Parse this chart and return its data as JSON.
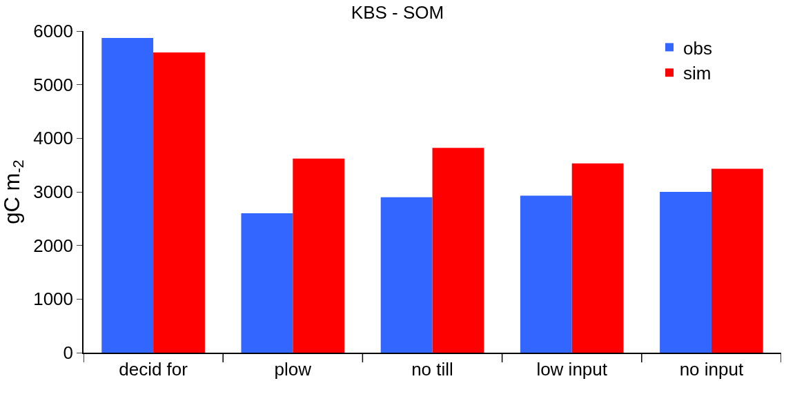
{
  "chart_data": {
    "type": "bar",
    "title": "KBS - SOM",
    "ylabel": "gC m$_{-2}$",
    "categories": [
      "decid for",
      "plow",
      "no till",
      "low input",
      "no input"
    ],
    "series": [
      {
        "name": "obs",
        "color": "#3366ff",
        "values": [
          5870,
          2600,
          2900,
          2930,
          3000
        ]
      },
      {
        "name": "sim",
        "color": "#ff0000",
        "values": [
          5600,
          3620,
          3820,
          3530,
          3430
        ]
      }
    ],
    "ylim": [
      0,
      6000
    ],
    "yticks": [
      0,
      1000,
      2000,
      3000,
      4000,
      5000,
      6000
    ],
    "legend": "top right"
  }
}
